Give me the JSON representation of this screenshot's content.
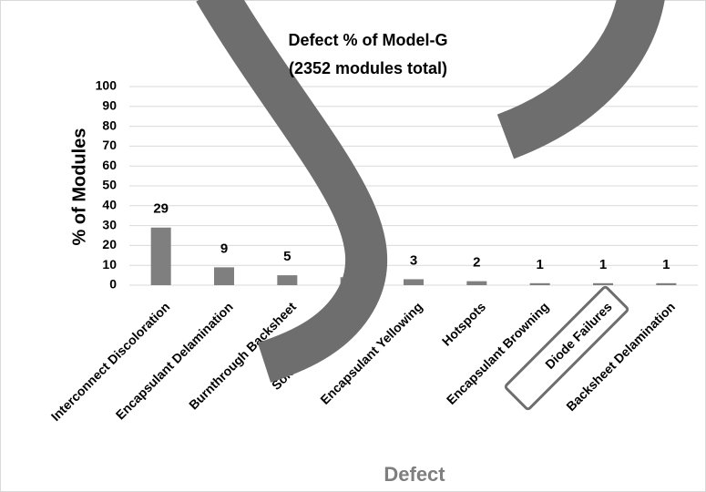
{
  "chart_data": {
    "type": "bar",
    "title": "Defect % of Model-G",
    "subtitle": "(2352 modules total)",
    "y_label": "% of Modules",
    "x_label": "Defect",
    "categories": [
      "Interconnect Discoloration",
      "Encapsulant Delamination",
      "Burnthrough Backsheet",
      "Solder Bond failure",
      "Encapsulant Yellowing",
      "Hotspots",
      "Encapsulant Browning",
      "Diode Failures",
      "Backsheet Delamination"
    ],
    "values": [
      29,
      9,
      5,
      4,
      3,
      2,
      1,
      1,
      1
    ],
    "color": "#7f7f7f",
    "ylim": [
      0,
      100
    ],
    "yticks": [
      0,
      10,
      20,
      30,
      40,
      50,
      60,
      70,
      80,
      90,
      100
    ],
    "grid": true
  }
}
